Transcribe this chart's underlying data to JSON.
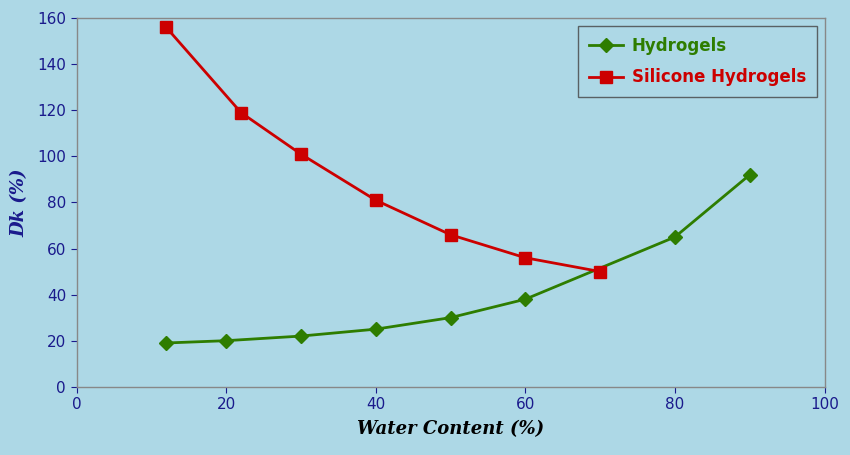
{
  "hydrogels_x": [
    12,
    20,
    30,
    40,
    50,
    60,
    80,
    90
  ],
  "hydrogels_y": [
    19,
    20,
    22,
    25,
    30,
    38,
    65,
    92
  ],
  "silicone_x": [
    12,
    22,
    30,
    40,
    50,
    60,
    70
  ],
  "silicone_y": [
    156,
    119,
    101,
    81,
    66,
    56,
    50
  ],
  "hydrogels_color": "#2e7d00",
  "silicone_color": "#cc0000",
  "background_color": "#add8e6",
  "xlabel": "Water Content (%)",
  "ylabel": "Dk (%)",
  "xlim": [
    0,
    100
  ],
  "ylim": [
    0,
    160
  ],
  "xticks": [
    0,
    20,
    40,
    60,
    80,
    100
  ],
  "yticks": [
    0,
    20,
    40,
    60,
    80,
    100,
    120,
    140,
    160
  ],
  "tick_color": "#1a1a8c",
  "label_color": "#1a1a8c",
  "legend_hydrogels": "Hydrogels",
  "legend_silicone": "Silicone Hydrogels",
  "xlabel_color": "#000000",
  "ylabel_color": "#1a1a8c",
  "spine_color": "#888888",
  "legend_edge_color": "#444444"
}
